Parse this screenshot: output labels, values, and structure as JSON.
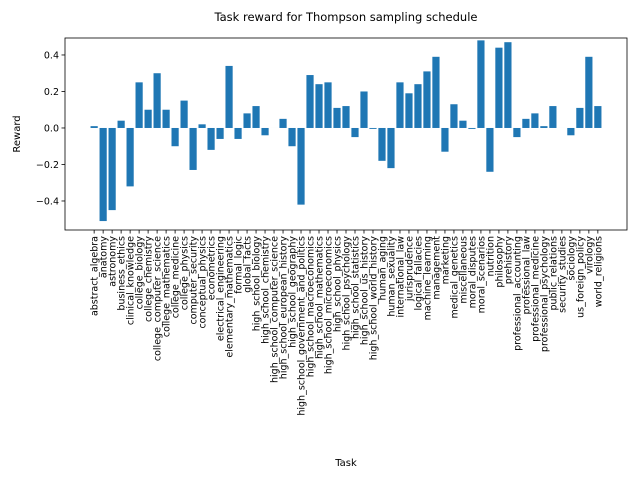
{
  "chart_data": {
    "type": "bar",
    "title": "Task reward for Thompson sampling schedule",
    "xlabel": "Task",
    "ylabel": "Reward",
    "color": "#1f77b4",
    "categories": [
      "abstract_algebra",
      "anatomy",
      "astronomy",
      "business_ethics",
      "clinical_knowledge",
      "college_biology",
      "college_chemistry",
      "college_computer_science",
      "college_mathematics",
      "college_medicine",
      "college_physics",
      "computer_security",
      "conceptual_physics",
      "econometrics",
      "electrical_engineering",
      "elementary_mathematics",
      "formal_logic",
      "global_facts",
      "high_school_biology",
      "high_school_chemistry",
      "high_school_computer_science",
      "high_school_european_history",
      "high_school_geography",
      "high_school_government_and_politics",
      "high_school_macroeconomics",
      "high_school_mathematics",
      "high_school_microeconomics",
      "high_school_physics",
      "high_school_psychology",
      "high_school_statistics",
      "high_school_us_history",
      "high_school_world_history",
      "human_aging",
      "human_sexuality",
      "international_law",
      "jurisprudence",
      "logical_fallacies",
      "machine_learning",
      "management",
      "marketing",
      "medical_genetics",
      "miscellaneous",
      "moral_disputes",
      "moral_scenarios",
      "nutrition",
      "philosophy",
      "prehistory",
      "professional_accounting",
      "professional_law",
      "professional_medicine",
      "professional_psychology",
      "public_relations",
      "security_studies",
      "sociology",
      "us_foreign_policy",
      "virology",
      "world_religions"
    ],
    "values": [
      0.01,
      -0.51,
      -0.45,
      0.04,
      -0.32,
      0.25,
      0.1,
      0.3,
      0.1,
      -0.1,
      0.15,
      -0.23,
      0.02,
      -0.12,
      -0.06,
      0.34,
      -0.06,
      0.08,
      0.12,
      -0.04,
      0.0,
      0.05,
      -0.1,
      -0.42,
      0.29,
      0.24,
      0.25,
      0.11,
      0.12,
      -0.05,
      0.2,
      -0.005,
      -0.18,
      -0.22,
      0.25,
      0.19,
      0.24,
      0.31,
      0.39,
      -0.13,
      0.13,
      0.04,
      -0.005,
      0.48,
      -0.24,
      0.44,
      0.47,
      -0.05,
      0.05,
      0.08,
      0.01,
      0.12,
      0.0,
      -0.04,
      0.11,
      0.39,
      0.12
    ],
    "ylim": [
      -0.559,
      0.493
    ],
    "yticks": [
      {
        "value": -0.4,
        "label": "−0.4"
      },
      {
        "value": -0.2,
        "label": "−0.2"
      },
      {
        "value": 0,
        "label": "0.0"
      },
      0.2,
      0.4
    ]
  }
}
